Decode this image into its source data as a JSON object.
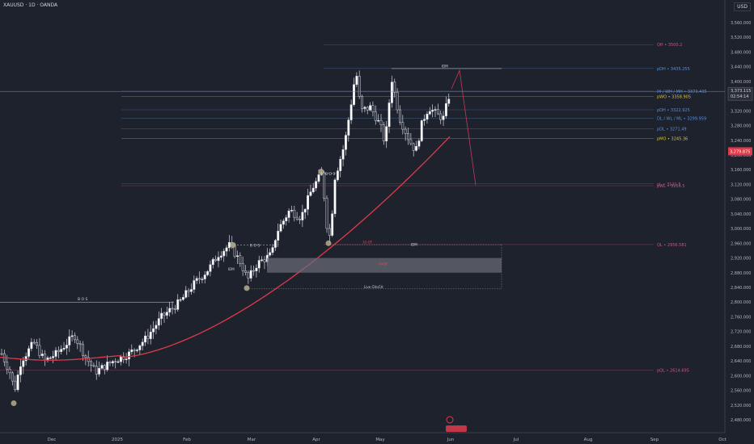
{
  "header": {
    "symbol": "XAUUSD · 1D · OANDA",
    "currency": "USD"
  },
  "chart_data": {
    "type": "candlestick",
    "y_ticks": [
      2480,
      2520,
      2560,
      2600,
      2640,
      2680,
      2720,
      2760,
      2800,
      2840,
      2880,
      2920,
      2960,
      3000,
      3040,
      3080,
      3120,
      3160,
      3200,
      3240,
      3280,
      3320,
      3360,
      3400,
      3440,
      3480,
      3520,
      3560
    ],
    "ylim": [
      2455,
      3590
    ],
    "x_labels": [
      "Dec",
      "2025",
      "Feb",
      "Mar",
      "Apr",
      "May",
      "Jun",
      "Jul",
      "Aug",
      "Sep",
      "Oct"
    ],
    "price_tags": {
      "last": "3,279.875",
      "marker_price": "3,373.115",
      "marker_timer": "02:54:14"
    },
    "levels": [
      {
        "label": "QH • 3500.2",
        "price": 3500.2,
        "color": "#c45a7a"
      },
      {
        "label": "pDH • 3435.255",
        "price": 3435.255,
        "color": "#5b8fd6"
      },
      {
        "label": "IH / WH / MH • 3373.435",
        "price": 3373.435,
        "color": "#5b8fd6"
      },
      {
        "label": "pWO • 3358.905",
        "price": 3358.905,
        "color": "#d4c44a"
      },
      {
        "label": "pDH • 3322.925",
        "price": 3322.925,
        "color": "#5b8fd6"
      },
      {
        "label": "DL / WL / ML • 3299.959",
        "price": 3299.959,
        "color": "#5b8fd6"
      },
      {
        "label": "pDL • 3271.49",
        "price": 3271.49,
        "color": "#5b8fd6"
      },
      {
        "label": "pMO • 3245.36",
        "price": 3245.36,
        "color": "#d4c44a"
      },
      {
        "label": "pL • 3121.5",
        "price": 3121.5,
        "color": "#c45a7a"
      },
      {
        "label": "pWL • 3116.5",
        "price": 3116.5,
        "color": "#c45a7a"
      },
      {
        "label": "QL • 2956.581",
        "price": 2956.581,
        "color": "#c45a7a"
      },
      {
        "label": "pQL • 2614.695",
        "price": 2614.695,
        "color": "#c45a7a"
      }
    ],
    "annotations": {
      "bos_label": "B O S",
      "idm_label": "IDM",
      "liq_label": "10-OF",
      "fvg_label": "VwOF",
      "choch_label": "Live CHoCH"
    }
  }
}
